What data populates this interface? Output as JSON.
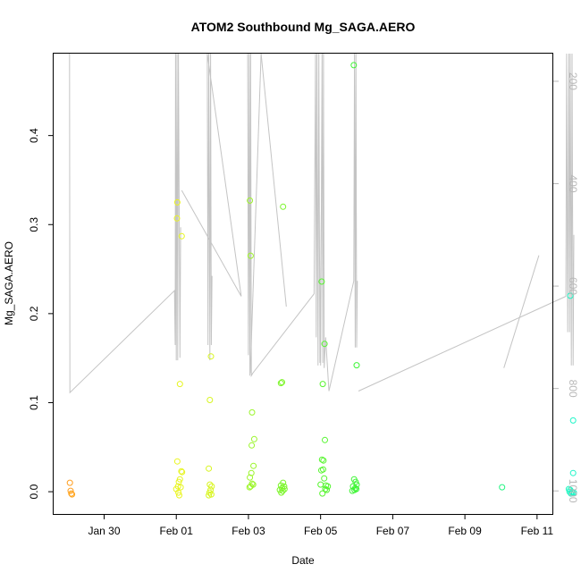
{
  "chart_data": {
    "type": "scatter",
    "title": "ATOM2 Southbound Mg_SAGA.AERO",
    "xlabel": "Date",
    "ylabel": "Mg_SAGA.AERO",
    "x_unit": "days, 0 = Jan 30",
    "xlim": [
      -1.4,
      12.45
    ],
    "ylim": [
      -0.025,
      0.492
    ],
    "x_ticks": [
      {
        "x": 0,
        "label": "Jan 30"
      },
      {
        "x": 2,
        "label": "Feb 01"
      },
      {
        "x": 4,
        "label": "Feb 03"
      },
      {
        "x": 6,
        "label": "Feb 05"
      },
      {
        "x": 8,
        "label": "Feb 07"
      },
      {
        "x": 10,
        "label": "Feb 09"
      },
      {
        "x": 12,
        "label": "Feb 11"
      }
    ],
    "y_ticks": [
      {
        "y": 0.0,
        "label": "0.0"
      },
      {
        "y": 0.1,
        "label": "0.1"
      },
      {
        "y": 0.2,
        "label": "0.2"
      },
      {
        "y": 0.3,
        "label": "0.3"
      },
      {
        "y": 0.4,
        "label": "0.4"
      }
    ],
    "right_axis": {
      "ylim": [
        1045,
        146
      ],
      "ticks": [
        {
          "y": 200,
          "label": "200"
        },
        {
          "y": 400,
          "label": "400"
        },
        {
          "y": 600,
          "label": "600"
        },
        {
          "y": 800,
          "label": "800"
        },
        {
          "y": 1000,
          "label": "1000"
        }
      ],
      "color": "#b8b8b8"
    },
    "points": [
      {
        "x": -0.95,
        "y": 0.01,
        "color": "#ff9e1f"
      },
      {
        "x": -0.93,
        "y": 0.001,
        "color": "#ff9e1f"
      },
      {
        "x": -0.91,
        "y": -0.002,
        "color": "#ffa51f"
      },
      {
        "x": -0.89,
        "y": -0.003,
        "color": "#ffa51f"
      },
      {
        "x": 2.03,
        "y": 0.325,
        "color": "#ecf520"
      },
      {
        "x": 2.02,
        "y": 0.307,
        "color": "#ecf520"
      },
      {
        "x": 2.15,
        "y": 0.287,
        "color": "#e6f520"
      },
      {
        "x": 2.1,
        "y": 0.121,
        "color": "#e6f520"
      },
      {
        "x": 2.03,
        "y": 0.034,
        "color": "#eaf520"
      },
      {
        "x": 2.14,
        "y": 0.023,
        "color": "#e6f520"
      },
      {
        "x": 2.16,
        "y": 0.022,
        "color": "#e6f520"
      },
      {
        "x": 2.1,
        "y": 0.014,
        "color": "#e6f520"
      },
      {
        "x": 2.07,
        "y": 0.011,
        "color": "#e6f520"
      },
      {
        "x": 2.05,
        "y": 0.006,
        "color": "#eaf520"
      },
      {
        "x": 2.0,
        "y": 0.003,
        "color": "#eaf520"
      },
      {
        "x": 2.12,
        "y": 0.005,
        "color": "#e6f520"
      },
      {
        "x": 2.06,
        "y": -0.001,
        "color": "#eaf520"
      },
      {
        "x": 2.08,
        "y": -0.004,
        "color": "#eaf520"
      },
      {
        "x": 2.96,
        "y": 0.152,
        "color": "#d8f520"
      },
      {
        "x": 2.93,
        "y": 0.103,
        "color": "#d8f520"
      },
      {
        "x": 2.9,
        "y": 0.026,
        "color": "#d8f520"
      },
      {
        "x": 2.93,
        "y": 0.008,
        "color": "#d8f520"
      },
      {
        "x": 2.98,
        "y": 0.006,
        "color": "#d8f520"
      },
      {
        "x": 2.95,
        "y": 0.002,
        "color": "#d8f520"
      },
      {
        "x": 2.92,
        "y": -0.001,
        "color": "#d8f520"
      },
      {
        "x": 2.97,
        "y": -0.003,
        "color": "#d8f520"
      },
      {
        "x": 2.9,
        "y": -0.004,
        "color": "#d8f520"
      },
      {
        "x": 4.04,
        "y": 0.327,
        "color": "#9ef52a"
      },
      {
        "x": 4.06,
        "y": 0.265,
        "color": "#9ef52a"
      },
      {
        "x": 4.1,
        "y": 0.089,
        "color": "#9af52a"
      },
      {
        "x": 4.16,
        "y": 0.059,
        "color": "#9af52a"
      },
      {
        "x": 4.09,
        "y": 0.052,
        "color": "#9af52a"
      },
      {
        "x": 4.14,
        "y": 0.029,
        "color": "#9af52a"
      },
      {
        "x": 4.08,
        "y": 0.021,
        "color": "#9af52a"
      },
      {
        "x": 4.04,
        "y": 0.016,
        "color": "#9ef52a"
      },
      {
        "x": 4.1,
        "y": 0.009,
        "color": "#9af52a"
      },
      {
        "x": 4.13,
        "y": 0.008,
        "color": "#9af52a"
      },
      {
        "x": 4.06,
        "y": 0.006,
        "color": "#9af52a"
      },
      {
        "x": 4.03,
        "y": 0.005,
        "color": "#9ef52a"
      },
      {
        "x": 4.9,
        "y": 0.122,
        "color": "#7df52a"
      },
      {
        "x": 4.93,
        "y": 0.123,
        "color": "#7df52a"
      },
      {
        "x": 4.96,
        "y": 0.32,
        "color": "#7af52a"
      },
      {
        "x": 4.9,
        "y": 0.007,
        "color": "#7df52a"
      },
      {
        "x": 4.93,
        "y": 0.004,
        "color": "#7df52a"
      },
      {
        "x": 4.96,
        "y": 0.01,
        "color": "#7af52a"
      },
      {
        "x": 4.99,
        "y": 0.006,
        "color": "#7af52a"
      },
      {
        "x": 4.87,
        "y": 0.002,
        "color": "#7df52a"
      },
      {
        "x": 4.95,
        "y": 0.001,
        "color": "#7af52a"
      },
      {
        "x": 4.91,
        "y": -0.001,
        "color": "#7df52a"
      },
      {
        "x": 5.0,
        "y": 0.003,
        "color": "#7af52a"
      },
      {
        "x": 6.03,
        "y": 0.236,
        "color": "#57f52f"
      },
      {
        "x": 6.11,
        "y": 0.166,
        "color": "#54f52f"
      },
      {
        "x": 6.06,
        "y": 0.121,
        "color": "#57f52f"
      },
      {
        "x": 6.12,
        "y": 0.058,
        "color": "#54f52f"
      },
      {
        "x": 6.04,
        "y": 0.036,
        "color": "#57f52f"
      },
      {
        "x": 6.08,
        "y": 0.035,
        "color": "#57f52f"
      },
      {
        "x": 6.02,
        "y": 0.024,
        "color": "#57f52f"
      },
      {
        "x": 6.07,
        "y": 0.025,
        "color": "#57f52f"
      },
      {
        "x": 6.1,
        "y": 0.015,
        "color": "#54f52f"
      },
      {
        "x": 6.0,
        "y": 0.008,
        "color": "#57f52f"
      },
      {
        "x": 6.15,
        "y": 0.007,
        "color": "#54f52f"
      },
      {
        "x": 6.2,
        "y": 0.006,
        "color": "#54f52f"
      },
      {
        "x": 6.13,
        "y": 0.003,
        "color": "#54f52f"
      },
      {
        "x": 6.05,
        "y": -0.002,
        "color": "#57f52f"
      },
      {
        "x": 6.17,
        "y": 0.002,
        "color": "#54f52f"
      },
      {
        "x": 6.92,
        "y": 0.479,
        "color": "#3ff535"
      },
      {
        "x": 7.0,
        "y": 0.142,
        "color": "#3cf535"
      },
      {
        "x": 6.93,
        "y": 0.014,
        "color": "#3ff535"
      },
      {
        "x": 6.97,
        "y": 0.011,
        "color": "#3ff535"
      },
      {
        "x": 7.0,
        "y": 0.008,
        "color": "#3cf535"
      },
      {
        "x": 6.9,
        "y": 0.006,
        "color": "#3ff535"
      },
      {
        "x": 6.96,
        "y": 0.004,
        "color": "#3ff535"
      },
      {
        "x": 6.94,
        "y": 0.002,
        "color": "#3ff535"
      },
      {
        "x": 6.88,
        "y": 0.001,
        "color": "#3ff535"
      },
      {
        "x": 6.99,
        "y": 0.003,
        "color": "#3cf535"
      },
      {
        "x": 11.03,
        "y": 0.005,
        "color": "#24f582"
      },
      {
        "x": 12.92,
        "y": 0.22,
        "color": "#1ff5c4"
      },
      {
        "x": 13.0,
        "y": 0.08,
        "color": "#1ff5c8"
      },
      {
        "x": 13.0,
        "y": 0.021,
        "color": "#1ff5c8"
      },
      {
        "x": 12.88,
        "y": 0.003,
        "color": "#1ff5c0"
      },
      {
        "x": 12.92,
        "y": 0.002,
        "color": "#1ff5c4"
      },
      {
        "x": 12.96,
        "y": 0.0,
        "color": "#1ff5c4"
      },
      {
        "x": 12.98,
        "y": -0.001,
        "color": "#1ff5c8"
      },
      {
        "x": 12.94,
        "y": -0.002,
        "color": "#1ff5c4"
      },
      {
        "x": 13.02,
        "y": -0.001,
        "color": "#1ff5c8"
      },
      {
        "x": 12.9,
        "y": 0.0,
        "color": "#1ff5c0"
      }
    ],
    "flight_tracks": [
      [
        [
          -0.98,
          100
        ],
        [
          -0.96,
          100
        ],
        [
          -0.95,
          808
        ],
        [
          1.95,
          609
        ],
        [
          1.97,
          715
        ],
        [
          1.98,
          100
        ],
        [
          2.0,
          745
        ],
        [
          2.02,
          100
        ],
        [
          2.04,
          745
        ],
        [
          2.06,
          100
        ],
        [
          2.1,
          740
        ],
        [
          2.12,
          485
        ]
      ],
      [
        [
          2.15,
          413
        ],
        [
          3.8,
          620
        ],
        [
          2.86,
          100
        ],
        [
          2.88,
          715
        ],
        [
          2.9,
          100
        ],
        [
          2.93,
          745
        ],
        [
          2.95,
          100
        ],
        [
          2.97,
          715
        ],
        [
          2.99,
          580
        ]
      ],
      [
        [
          3.98,
          100
        ],
        [
          4.0,
          735
        ],
        [
          4.02,
          100
        ],
        [
          4.04,
          775
        ],
        [
          4.06,
          100
        ],
        [
          4.08,
          775
        ],
        [
          4.12,
          770
        ],
        [
          5.82,
          615
        ],
        [
          5.86,
          100
        ],
        [
          5.88,
          700
        ],
        [
          5.9,
          100
        ],
        [
          5.93,
          755
        ],
        [
          5.95,
          100
        ],
        [
          5.98,
          750
        ],
        [
          6.02,
          450
        ]
      ],
      [
        [
          6.0,
          755
        ],
        [
          6.04,
          100
        ],
        [
          6.06,
          750
        ],
        [
          6.08,
          100
        ],
        [
          6.1,
          760
        ],
        [
          6.14,
          700
        ],
        [
          6.23,
          805
        ],
        [
          6.92,
          590
        ],
        [
          6.94,
          100
        ],
        [
          6.96,
          720
        ],
        [
          6.98,
          100
        ],
        [
          7.0,
          720
        ],
        [
          7.02,
          590
        ]
      ],
      [
        [
          7.05,
          805
        ],
        [
          12.8,
          620
        ],
        [
          12.82,
          100
        ],
        [
          12.85,
          690
        ],
        [
          12.88,
          100
        ],
        [
          12.9,
          690
        ],
        [
          12.92,
          100
        ],
        [
          12.95,
          755
        ],
        [
          12.97,
          100
        ],
        [
          13.0,
          755
        ],
        [
          13.02,
          500
        ]
      ],
      [
        [
          11.08,
          760
        ],
        [
          12.05,
          540
        ]
      ],
      [
        [
          4.35,
          100
        ],
        [
          4.05,
          770
        ]
      ],
      [
        [
          4.35,
          100
        ],
        [
          5.05,
          640
        ]
      ]
    ]
  }
}
